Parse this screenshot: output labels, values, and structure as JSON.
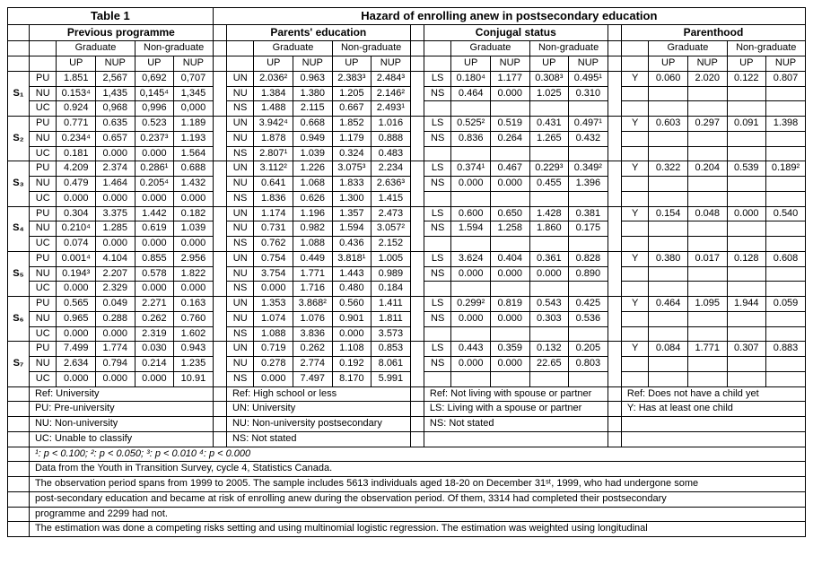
{
  "title_left": "Table 1",
  "title_right": "Hazard of enrolling anew in postsecondary education",
  "sections": {
    "prev": {
      "title": "Previous programme",
      "grad": "Graduate",
      "nongrad": "Non-graduate",
      "sub": [
        "UP",
        "NUP",
        "UP",
        "NUP"
      ],
      "labels": [
        "PU",
        "NU",
        "UC"
      ]
    },
    "par": {
      "title": "Parents' education",
      "grad": "Graduate",
      "nongrad": "Non-graduate",
      "sub": [
        "UP",
        "NUP",
        "UP",
        "NUP"
      ],
      "labels": [
        "UN",
        "NU",
        "NS"
      ]
    },
    "conj": {
      "title": "Conjugal status",
      "grad": "Graduate",
      "nongrad": "Non-graduate",
      "sub": [
        "UP",
        "NUP",
        "UP",
        "NUP"
      ],
      "labels": [
        "LS",
        "NS"
      ]
    },
    "parent": {
      "title": "Parenthood",
      "grad": "Graduate",
      "nongrad": "Non-graduate",
      "sub": [
        "UP",
        "NUP",
        "UP",
        "NUP"
      ],
      "labels": [
        "Y"
      ]
    }
  },
  "rows": [
    {
      "s": "S₁",
      "prev": [
        [
          "1.851",
          "2,567",
          "0,692",
          "0,707"
        ],
        [
          "0.153⁴",
          "1,435",
          "0,145⁴",
          "1,345"
        ],
        [
          "0.924",
          "0,968",
          "0,996",
          "0,000"
        ]
      ],
      "par": [
        [
          "2.036²",
          "0.963",
          "2.383³",
          "2.484³"
        ],
        [
          "1.384",
          "1.380",
          "1.205",
          "2.146²"
        ],
        [
          "1.488",
          "2.115",
          "0.667",
          "2.493¹"
        ]
      ],
      "conj": [
        [
          "0.180⁴",
          "1.177",
          "0.308³",
          "0.495¹"
        ],
        [
          "0.464",
          "0.000",
          "1.025",
          "0.310"
        ]
      ],
      "parent": [
        [
          "0.060",
          "2.020",
          "0.122",
          "0.807"
        ]
      ]
    },
    {
      "s": "S₂",
      "prev": [
        [
          "0.771",
          "0.635",
          "0.523",
          "1.189"
        ],
        [
          "0.234⁴",
          "0.657",
          "0.237³",
          "1.193"
        ],
        [
          "0.181",
          "0.000",
          "0.000",
          "1.564"
        ]
      ],
      "par": [
        [
          "3.942⁴",
          "0.668",
          "1.852",
          "1.016"
        ],
        [
          "1.878",
          "0.949",
          "1.179",
          "0.888"
        ],
        [
          "2.807¹",
          "1.039",
          "0.324",
          "0.483"
        ]
      ],
      "conj": [
        [
          "0.525²",
          "0.519",
          "0.431",
          "0.497¹"
        ],
        [
          "0.836",
          "0.264",
          "1.265",
          "0.432"
        ]
      ],
      "parent": [
        [
          "0.603",
          "0.297",
          "0.091",
          "1.398"
        ]
      ]
    },
    {
      "s": "S₃",
      "prev": [
        [
          "4.209",
          "2.374",
          "0.286¹",
          "0.688"
        ],
        [
          "0.479",
          "1.464",
          "0.205⁴",
          "1.432"
        ],
        [
          "0.000",
          "0.000",
          "0.000",
          "0.000"
        ]
      ],
      "par": [
        [
          "3.112²",
          "1.226",
          "3.075³",
          "2.234"
        ],
        [
          "0.641",
          "1.068",
          "1.833",
          "2.636³"
        ],
        [
          "1.836",
          "0.626",
          "1.300",
          "1.415"
        ]
      ],
      "conj": [
        [
          "0.374¹",
          "0.467",
          "0.229³",
          "0.349²"
        ],
        [
          "0.000",
          "0.000",
          "0.455",
          "1.396"
        ]
      ],
      "parent": [
        [
          "0.322",
          "0.204",
          "0.539",
          "0.189²"
        ]
      ]
    },
    {
      "s": "S₄",
      "prev": [
        [
          "0.304",
          "3.375",
          "1.442",
          "0.182"
        ],
        [
          "0.210⁴",
          "1.285",
          "0.619",
          "1.039"
        ],
        [
          "0.074",
          "0.000",
          "0.000",
          "0.000"
        ]
      ],
      "par": [
        [
          "1.174",
          "1.196",
          "1.357",
          "2.473"
        ],
        [
          "0.731",
          "0.982",
          "1.594",
          "3.057²"
        ],
        [
          "0.762",
          "1.088",
          "0.436",
          "2.152"
        ]
      ],
      "conj": [
        [
          "0.600",
          "0.650",
          "1.428",
          "0.381"
        ],
        [
          "1.594",
          "1.258",
          "1.860",
          "0.175"
        ]
      ],
      "parent": [
        [
          "0.154",
          "0.048",
          "0.000",
          "0.540"
        ]
      ]
    },
    {
      "s": "S₅",
      "prev": [
        [
          "0.001⁴",
          "4.104",
          "0.855",
          "2.956"
        ],
        [
          "0.194³",
          "2.207",
          "0.578",
          "1.822"
        ],
        [
          "0.000",
          "2.329",
          "0.000",
          "0.000"
        ]
      ],
      "par": [
        [
          "0.754",
          "0.449",
          "3.818¹",
          "1.005"
        ],
        [
          "3.754",
          "1.771",
          "1.443",
          "0.989"
        ],
        [
          "0.000",
          "1.716",
          "0.480",
          "0.184"
        ]
      ],
      "conj": [
        [
          "3.624",
          "0.404",
          "0.361",
          "0.828"
        ],
        [
          "0.000",
          "0.000",
          "0.000",
          "0.890"
        ]
      ],
      "parent": [
        [
          "0.380",
          "0.017",
          "0.128",
          "0.608"
        ]
      ]
    },
    {
      "s": "S₆",
      "prev": [
        [
          "0.565",
          "0.049",
          "2.271",
          "0.163"
        ],
        [
          "0.965",
          "0.288",
          "0.262",
          "0.760"
        ],
        [
          "0.000",
          "0.000",
          "2.319",
          "1.602"
        ]
      ],
      "par": [
        [
          "1.353",
          "3.868²",
          "0.560",
          "1.411"
        ],
        [
          "1.074",
          "1.076",
          "0.901",
          "1.811"
        ],
        [
          "1.088",
          "3.836",
          "0.000",
          "3.573"
        ]
      ],
      "conj": [
        [
          "0.299²",
          "0.819",
          "0.543",
          "0.425"
        ],
        [
          "0.000",
          "0.000",
          "0.303",
          "0.536"
        ]
      ],
      "parent": [
        [
          "0.464",
          "1.095",
          "1.944",
          "0.059"
        ]
      ]
    },
    {
      "s": "S₇",
      "prev": [
        [
          "7.499",
          "1.774",
          "0.030",
          "0.943"
        ],
        [
          "2.634",
          "0.794",
          "0.214",
          "1.235"
        ],
        [
          "0.000",
          "0.000",
          "0.000",
          "10.91"
        ]
      ],
      "par": [
        [
          "0.719",
          "0.262",
          "1.108",
          "0.853"
        ],
        [
          "0.278",
          "2.774",
          "0.192",
          "8.061"
        ],
        [
          "0.000",
          "7.497",
          "8.170",
          "5.991"
        ]
      ],
      "conj": [
        [
          "0.443",
          "0.359",
          "0.132",
          "0.205"
        ],
        [
          "0.000",
          "0.000",
          "22.65",
          "0.803"
        ]
      ],
      "parent": [
        [
          "0.084",
          "1.771",
          "0.307",
          "0.883"
        ]
      ]
    }
  ],
  "refs": {
    "prev": [
      "Ref: University",
      "PU: Pre-university",
      "NU: Non-university",
      "UC: Unable to classify"
    ],
    "par": [
      "Ref: High school or less",
      "UN: University",
      "NU: Non-university postsecondary",
      "NS: Not stated"
    ],
    "conj": [
      "Ref: Not living with spouse or partner",
      "LS: Living with a spouse or partner",
      "NS: Not stated",
      ""
    ],
    "parent": [
      "Ref: Does not have a child yet",
      "Y:   Has at least one child",
      "",
      ""
    ]
  },
  "signif": "¹: p < 0.100;  ²: p < 0.050;  ³: p < 0.010  ⁴: p < 0.000",
  "notes": [
    "Data from the Youth in Transition Survey, cycle 4, Statistics Canada.",
    "The observation period spans from 1999 to 2005. The sample includes 5613 individuals aged 18-20 on December 31ˢᵗ, 1999, who had undergone some",
    "post-secondary education and became at risk of enrolling anew during the observation period. Of them, 3314 had completed their postsecondary",
    "programme and 2299 had not.",
    "The estimation was done a competing risks setting and using multinomial logistic regression. The estimation was weighted using longitudinal"
  ],
  "style": {
    "font_family": "Arial",
    "base_fontsize": 11,
    "border_color": "#000000",
    "background_color": "#ffffff",
    "text_color": "#000000"
  }
}
